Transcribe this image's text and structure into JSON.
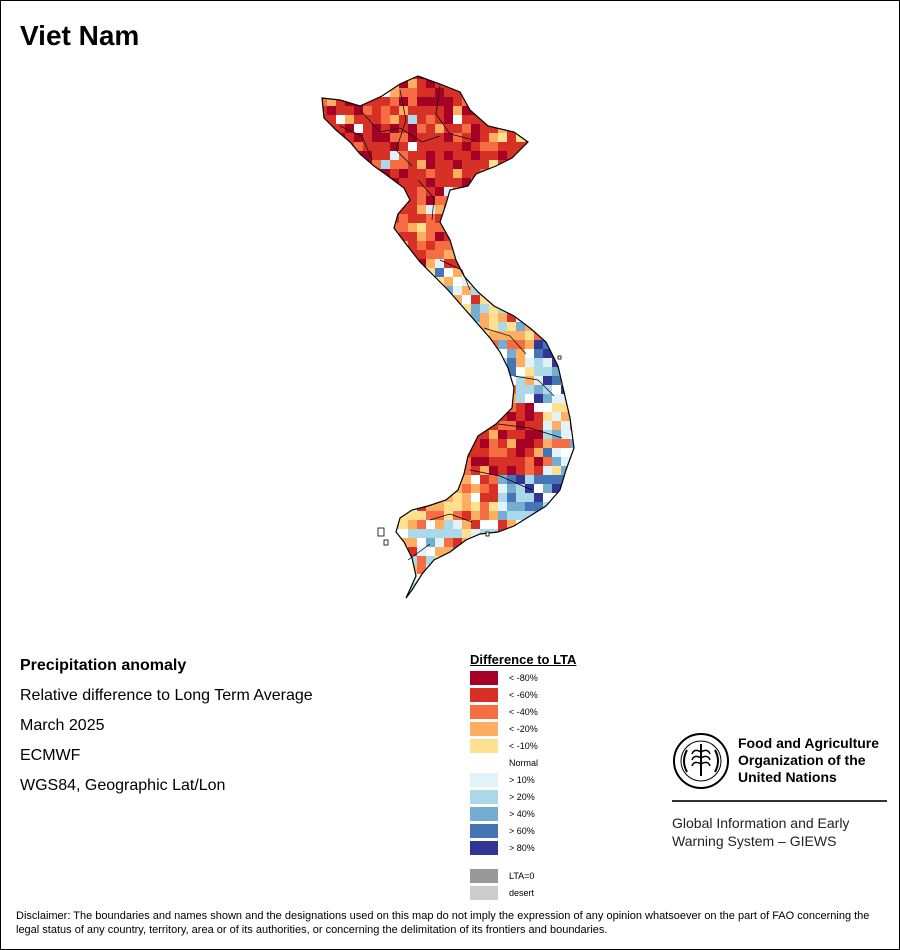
{
  "title": "Viet Nam",
  "info": {
    "heading": "Precipitation anomaly",
    "line1": "Relative difference to Long Term Average",
    "line2": "March 2025",
    "line3": "ECMWF",
    "line4": "WGS84, Geographic Lat/Lon"
  },
  "legend": {
    "title": "Difference to LTA",
    "items": [
      {
        "label": "< -80%",
        "color": "#a50026"
      },
      {
        "label": "< -60%",
        "color": "#d73027"
      },
      {
        "label": "< -40%",
        "color": "#f46d43"
      },
      {
        "label": "< -20%",
        "color": "#fdae61"
      },
      {
        "label": "< -10%",
        "color": "#fee090"
      },
      {
        "label": "Normal",
        "color": "#ffffff"
      },
      {
        "label": "> 10%",
        "color": "#e0f3f8"
      },
      {
        "label": "> 20%",
        "color": "#abd9e9"
      },
      {
        "label": "> 40%",
        "color": "#74add1"
      },
      {
        "label": "> 60%",
        "color": "#4575b4"
      },
      {
        "label": "> 80%",
        "color": "#313695"
      }
    ],
    "extra": [
      {
        "label": "LTA=0",
        "color": "#999999"
      },
      {
        "label": "desert",
        "color": "#cccccc"
      }
    ]
  },
  "fao": {
    "name_line1": "Food and Agriculture",
    "name_line2": "Organization of the",
    "name_line3": "United Nations",
    "system_line1": "Global Information and Early",
    "system_line2": "Warning System – GIEWS"
  },
  "disclaimer": "Disclaimer: The boundaries and names shown and the designations used on this map do not imply the expression of any opinion whatsoever on the part of FAO concerning the legal status of any country, territory, area or of its authorities, or concerning the delimitation of its frontiers and boundaries."
}
